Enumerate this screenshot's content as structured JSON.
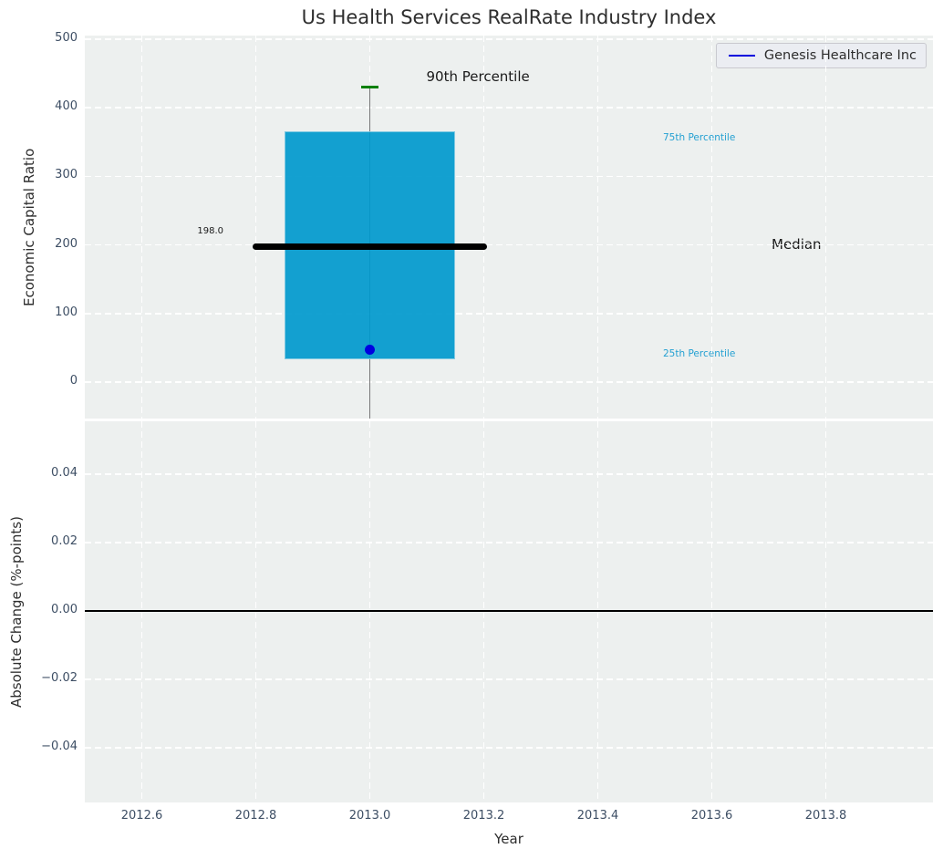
{
  "title": "Us Health Services RealRate Industry Index",
  "legend": {
    "label": "Genesis Healthcare Inc",
    "line_color": "#0000dd"
  },
  "colors": {
    "axes_bg": "#edf0ef",
    "grid": "#ffffff",
    "box_fill": "#0099cd",
    "median_line": "#000000",
    "whisker": "#787878",
    "cap": "#008000",
    "point": "#0000e0",
    "percentile_label": "#24a0d2",
    "tick_label": "#3d4e64",
    "zero_line": "#000000"
  },
  "chart_data": [
    {
      "type": "boxplot",
      "title": "Us Health Services RealRate Industry Index",
      "ylabel": "Economic Capital Ratio",
      "ylim": [
        -53,
        505
      ],
      "yticks": {
        "values": [
          0,
          100,
          200,
          300,
          400,
          500
        ],
        "labels": [
          "0",
          "100",
          "200",
          "300",
          "400",
          "500"
        ]
      },
      "xlim": [
        2012.5,
        2013.988
      ],
      "xticks": {
        "values": [
          2012.6,
          2012.8,
          2013.0,
          2013.2,
          2013.4,
          2013.6,
          2013.8
        ],
        "labels": [
          "2012.6",
          "2012.8",
          "2013.0",
          "2013.2",
          "2013.4",
          "2013.6",
          "2013.8"
        ]
      },
      "grid": "white dashed, on",
      "legend_position": "upper right",
      "box": {
        "x": 2013.0,
        "q1": 34,
        "median": 198,
        "q3": 365,
        "p90": 430,
        "whisker_low_clipped_below_axis": true,
        "box_width_years": 0.3,
        "median_span_years": 0.4
      },
      "point": {
        "x": 2013.0,
        "y": 47,
        "series": "Genesis Healthcare Inc"
      },
      "labels": {
        "median_value": "198.0",
        "p90": "90th Percentile",
        "p75": "75th Percentile",
        "median": "Median",
        "p25": "25th Percentile"
      }
    },
    {
      "type": "line",
      "ylabel": "Absolute Change (%-points)",
      "xlabel": "Year",
      "ylim": [
        -0.056,
        0.0555
      ],
      "yticks": {
        "values": [
          0.04,
          0.02,
          0,
          -0.02,
          -0.04
        ],
        "labels": [
          "0.04",
          "0.02",
          "0.00",
          "−0.02",
          "−0.04"
        ]
      },
      "xticks": {
        "values": [
          2012.6,
          2012.8,
          2013.0,
          2013.2,
          2013.4,
          2013.6,
          2013.8
        ],
        "labels": [
          "2012.6",
          "2012.8",
          "2013.0",
          "2013.2",
          "2013.4",
          "2013.6",
          "2013.8"
        ]
      },
      "grid": "white dashed, on",
      "zero_line": 0.0,
      "series": []
    }
  ]
}
